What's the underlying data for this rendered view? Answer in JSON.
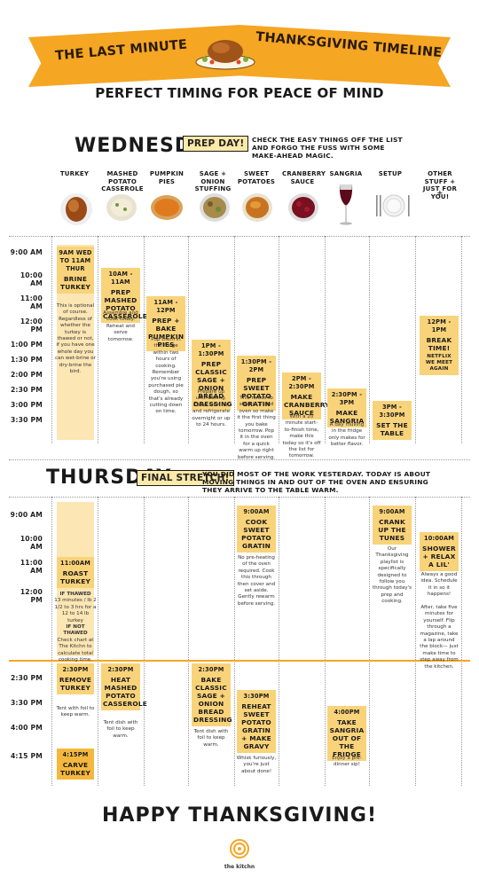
{
  "header": {
    "title_left": "THE LAST MINUTE",
    "title_right": "THANKSGIVING TIMELINE",
    "subtitle": "PERFECT TIMING FOR PEACE OF MIND"
  },
  "columns": [
    "TURKEY",
    "MASHED POTATO CASSEROLE",
    "PUMPKIN PIES",
    "SAGE + ONION STUFFING",
    "SWEET POTATOES",
    "CRANBERRY SAUCE",
    "SANGRIA",
    "SETUP",
    "OTHER STUFF + JUST FOR YOU!"
  ],
  "wednesday": {
    "day": "WEDNESDAY:",
    "tag": "PREP DAY!",
    "note": "CHECK THE EASY THINGS OFF THE LIST AND FORGO THE FUSS WITH SOME MAKE-AHEAD MAGIC.",
    "times": [
      "9:00 AM",
      "10:00 AM",
      "11:00 AM",
      "12:00 PM",
      "1:00 PM",
      "1:30 PM",
      "2:00 PM",
      "2:30 PM",
      "3:00 PM",
      "3:30 PM"
    ],
    "turkey": {
      "time": "9AM WED TO 11AM THUR",
      "task": "BRINE TURKEY",
      "desc": "This is optional of course. Regardless of whether the turkey is thawed or not, if you have one whole day you can wet-brine or dry-brine the bird."
    },
    "mashed": {
      "time": "10AM - 11AM",
      "task": "PREP MASHED POTATO CASSEROLE",
      "desc": "Assemble and cook today. Reheat and serve tomorrow."
    },
    "pies": {
      "time": "11AM - 12PM",
      "task": "PREP + BAKE PUMPKIN PIES",
      "desc": "Pop them in the fridge within two hours of cooking. Remember you're using purchased pie dough, so that's already cutting down on time."
    },
    "stuffing": {
      "time": "1PM - 1:30PM",
      "task": "PREP CLASSIC SAGE + ONION BREAD DRESSING",
      "desc": "Prepare up until baking. Cover with foil and refrigerate overnight or up to 24 hours."
    },
    "sweet": {
      "time": "1:30PM - 2PM",
      "task": "PREP SWEET POTATO GRATIN",
      "desc": "This needs to start in a cold oven so make it the first thing you bake tomorrow. Pop it in the oven for a quick warm up right before serving."
    },
    "cranberry": {
      "time": "2PM - 2:30PM",
      "task": "MAKE CRANBERRY SAUCE",
      "desc": "With a 20 minute start- to-finish time, make this today so it's off the list for tomorrow."
    },
    "sangria": {
      "time": "2:30PM - 3PM",
      "task": "MAKE SANGRIA",
      "desc": "A day mulling in the fridge only makes for better flavor."
    },
    "setup": {
      "time": "3PM - 3:30PM",
      "task": "SET THE TABLE"
    },
    "other": {
      "time": "12PM - 1PM",
      "task": "BREAK TIME!",
      "sub": "NETFLIX WE MEET AGAIN"
    }
  },
  "thursday": {
    "day": "THURSDAY:",
    "tag": "FINAL STRETCH!",
    "note": "YOU DID MOST OF THE WORK YESTERDAY. TODAY IS ABOUT MOVING THINGS IN AND OUT OF THE OVEN AND ENSURING THEY ARRIVE TO THE TABLE WARM.",
    "times_am": [
      "9:00 AM",
      "10:00 AM",
      "11:00 AM",
      "12:00 PM"
    ],
    "times_pm": [
      "2:30 PM",
      "3:30 PM",
      "4:00 PM",
      "4:15 PM"
    ],
    "turkey": {
      "time": "11:00AM",
      "task": "ROAST TURKEY",
      "desc_a": "IF THAWED",
      "desc_b": "13 minutes / lb 2 1/2 to 3 hrs for a 12 to 14 lb turkey",
      "desc_c": "IF NOT THAWED",
      "desc_d": "Check chart at The Kitchn to calculate total cooking time."
    },
    "sweet": {
      "time": "9:00AM",
      "task": "COOK SWEET POTATO GRATIN",
      "desc": "No pre-heating of the oven required. Cook this through then cover and set aside. Gently rewarm before serving."
    },
    "setup": {
      "time": "9:00AM",
      "task": "CRANK UP THE TUNES",
      "desc": "Our Thanksgiving playlist is specifically designed to follow you through today's prep and cooking."
    },
    "other": {
      "time": "10:00AM",
      "task": "SHOWER + RELAX A LIL'",
      "desc_a": "Always a good idea. Schedule it in so it happens!",
      "desc_b": "After, take five minutes for yourself. Flip through a magazine, take a lap around the block— just make time to step away from the kitchen."
    },
    "turkey2": {
      "time": "2:30PM",
      "task": "REMOVE TURKEY",
      "desc": "Tent with foil to keep warm."
    },
    "carve": {
      "time": "4:15PM",
      "task": "CARVE TURKEY"
    },
    "mashed": {
      "time": "2:30PM",
      "task": "HEAT MASHED POTATO CASSEROLE",
      "desc": "Tent dish with foil to keep warm."
    },
    "stuffing": {
      "time": "2:30PM",
      "task": "BAKE CLASSIC SAGE + ONION BREAD DRESSING",
      "desc": "Tent dish with foil to keep warm."
    },
    "sweet2": {
      "time": "3:30PM",
      "task": "REHEAT SWEET POTATO GRATIN + MAKE GRAVY",
      "desc": "Whisk furiously, you're just about done!"
    },
    "sangria": {
      "time": "4:00PM",
      "task": "TAKE SANGRIA OUT OF THE FRIDGE",
      "desc": "Enjoy a pre-dinner sip!"
    }
  },
  "footer": {
    "happy": "HAPPY THANKSGIVING!",
    "brand": "the kitchn"
  }
}
